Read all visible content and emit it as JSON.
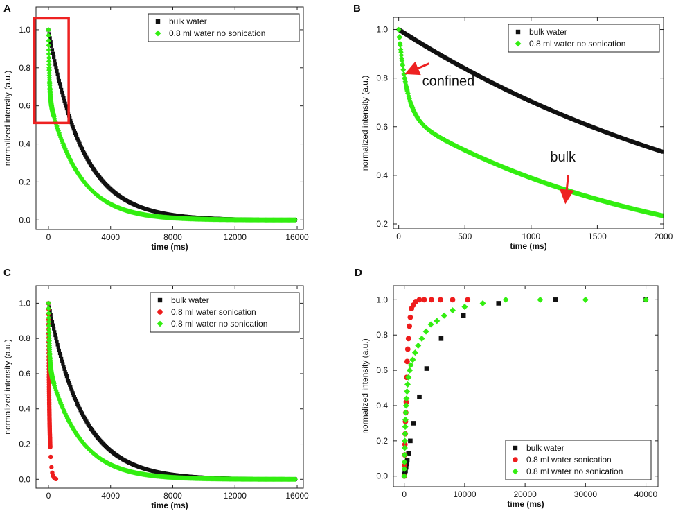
{
  "colors": {
    "bulk": "#111111",
    "sonication": "#ee1c1c",
    "no_sonication": "#33ee11",
    "highlight": "#ee2222"
  },
  "chart_data": [
    {
      "panel": "A",
      "type": "scatter",
      "xlabel": "time (ms)",
      "ylabel": "normalized intensity (a.u.)",
      "xlim": [
        -800,
        16400
      ],
      "ylim": [
        -0.05,
        1.12
      ],
      "xticks": [
        0,
        4000,
        8000,
        12000,
        16000
      ],
      "yticks": [
        0.0,
        0.2,
        0.4,
        0.6,
        0.8,
        1.0
      ],
      "legend_position": "top-right",
      "series": [
        {
          "name": "bulk water",
          "marker": "square",
          "color": "#111111",
          "model": "exp",
          "tau": 2200,
          "x_end": 15900
        },
        {
          "name": "0.8 ml water no sonication",
          "marker": "diamond",
          "color": "#33ee11",
          "model": "biexp",
          "a_fast": 0.35,
          "tau_fast": 60,
          "tau_slow": 1950,
          "x_end": 15900
        }
      ],
      "highlight_box": {
        "x_range": [
          -100,
          1300
        ],
        "y_range": [
          0.51,
          1.06
        ]
      }
    },
    {
      "panel": "B",
      "type": "scatter",
      "xlabel": "time (ms)",
      "ylabel": "normalized intensity (a.u.)",
      "xlim": [
        -40,
        2000
      ],
      "ylim": [
        0.18,
        1.05
      ],
      "xticks": [
        0,
        500,
        1000,
        1500,
        2000
      ],
      "yticks": [
        0.2,
        0.4,
        0.6,
        0.8,
        1.0
      ],
      "legend_position": "top-right",
      "series": [
        {
          "name": "bulk water",
          "marker": "square",
          "color": "#111111",
          "model": "exp",
          "tau": 2850,
          "x_end": 2000
        },
        {
          "name": "0.8 ml water no sonication",
          "marker": "diamond",
          "color": "#33ee11",
          "model": "biexp",
          "a_fast": 0.35,
          "tau_fast": 60,
          "tau_slow": 1950,
          "x_end": 2000
        }
      ],
      "annotations": [
        {
          "text": "confined",
          "arrow_from": [
            230,
            0.86
          ],
          "arrow_to": [
            60,
            0.82
          ]
        },
        {
          "text": "bulk",
          "arrow_from": [
            1280,
            0.4
          ],
          "arrow_to": [
            1260,
            0.29
          ]
        }
      ]
    },
    {
      "panel": "C",
      "type": "scatter",
      "xlabel": "time (ms)",
      "ylabel": "normalized intensity (a.u.)",
      "xlim": [
        -800,
        16400
      ],
      "ylim": [
        -0.05,
        1.1
      ],
      "xticks": [
        0,
        4000,
        8000,
        12000,
        16000
      ],
      "yticks": [
        0.0,
        0.2,
        0.4,
        0.6,
        0.8,
        1.0
      ],
      "legend_position": "top-right",
      "series": [
        {
          "name": "bulk water",
          "marker": "square",
          "color": "#111111",
          "model": "exp",
          "tau": 2200,
          "x_end": 15900
        },
        {
          "name": "0.8 ml  water sonication",
          "marker": "circle",
          "color": "#ee1c1c",
          "model": "biexp",
          "a_fast": 0.2,
          "tau_fast": 20,
          "tau_slow": 80,
          "x_end": 500
        },
        {
          "name": "0.8 ml  water no sonication",
          "marker": "diamond",
          "color": "#33ee11",
          "model": "biexp",
          "a_fast": 0.35,
          "tau_fast": 60,
          "tau_slow": 1950,
          "x_end": 15900
        }
      ]
    },
    {
      "panel": "D",
      "type": "scatter",
      "xlabel": "time (ms)",
      "ylabel": "normalized intensity (a.u.)",
      "xlim": [
        -1800,
        42000
      ],
      "ylim": [
        -0.06,
        1.08
      ],
      "xticks": [
        0,
        10000,
        20000,
        30000,
        40000
      ],
      "yticks": [
        0.0,
        0.2,
        0.4,
        0.6,
        0.8,
        1.0
      ],
      "legend_position": "bottom-right",
      "series": [
        {
          "name": "bulk water",
          "marker": "square",
          "color": "#111111",
          "x": [
            0,
            50,
            100,
            200,
            300,
            400,
            500,
            700,
            1000,
            1500,
            2500,
            3700,
            6100,
            9800,
            15600,
            25000,
            40000
          ],
          "y": [
            0.0,
            0.01,
            0.02,
            0.03,
            0.05,
            0.07,
            0.09,
            0.13,
            0.2,
            0.3,
            0.45,
            0.61,
            0.78,
            0.91,
            0.98,
            1.0,
            1.0
          ]
        },
        {
          "name": "0.8 ml water sonication",
          "marker": "circle",
          "color": "#ee1c1c",
          "x": [
            0,
            40,
            80,
            120,
            160,
            200,
            260,
            330,
            400,
            480,
            580,
            700,
            850,
            1000,
            1200,
            1500,
            1900,
            2500,
            3300,
            4500,
            6000,
            8000,
            10500
          ],
          "y": [
            0.0,
            0.06,
            0.12,
            0.18,
            0.24,
            0.31,
            0.36,
            0.42,
            0.56,
            0.65,
            0.72,
            0.78,
            0.85,
            0.9,
            0.95,
            0.97,
            0.99,
            1.0,
            1.0,
            1.0,
            1.0,
            1.0,
            1.0
          ]
        },
        {
          "name": "0.8 ml water no sonication",
          "marker": "diamond",
          "color": "#33ee11",
          "x": [
            0,
            20,
            40,
            60,
            80,
            100,
            130,
            160,
            200,
            250,
            300,
            370,
            450,
            550,
            700,
            900,
            1100,
            1400,
            1800,
            2300,
            2900,
            3600,
            4400,
            5400,
            6600,
            8000,
            10000,
            13000,
            16800,
            22500,
            30000,
            40000
          ],
          "y": [
            0.0,
            0.04,
            0.08,
            0.12,
            0.16,
            0.2,
            0.24,
            0.28,
            0.32,
            0.36,
            0.4,
            0.44,
            0.48,
            0.52,
            0.56,
            0.6,
            0.63,
            0.66,
            0.7,
            0.74,
            0.78,
            0.82,
            0.86,
            0.88,
            0.91,
            0.94,
            0.96,
            0.98,
            1.0,
            1.0,
            1.0,
            1.0
          ]
        }
      ]
    }
  ]
}
